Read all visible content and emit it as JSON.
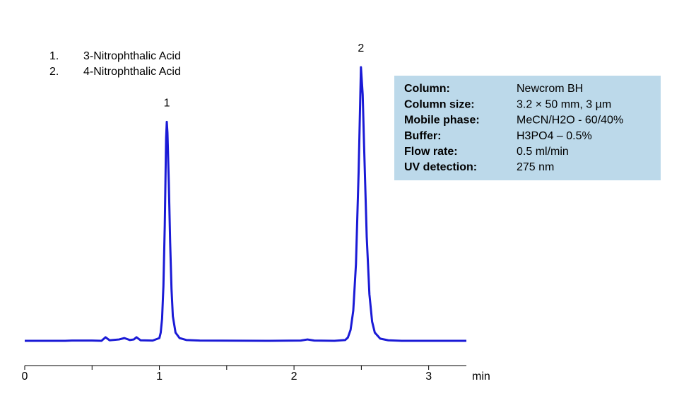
{
  "chart_data": {
    "type": "line",
    "x": [
      0,
      0.3,
      0.35,
      0.5,
      0.57,
      0.6,
      0.63,
      0.7,
      0.74,
      0.78,
      0.81,
      0.83,
      0.86,
      0.95,
      1.0,
      1.01,
      1.02,
      1.03,
      1.04,
      1.05,
      1.055,
      1.06,
      1.07,
      1.08,
      1.09,
      1.1,
      1.12,
      1.15,
      1.2,
      1.3,
      1.8,
      2.05,
      2.1,
      2.15,
      2.3,
      2.38,
      2.4,
      2.42,
      2.44,
      2.46,
      2.48,
      2.497,
      2.51,
      2.52,
      2.54,
      2.56,
      2.58,
      2.6,
      2.64,
      2.7,
      2.8,
      3.28
    ],
    "values": [
      0,
      0,
      0.1,
      0.1,
      0,
      1.3,
      0.2,
      0.5,
      1.0,
      0.3,
      0.5,
      1.3,
      0.2,
      0.1,
      1.0,
      3,
      8,
      20,
      42,
      74,
      80,
      76,
      58,
      36,
      19,
      9,
      3,
      1,
      0.3,
      0.1,
      0,
      0.1,
      0.5,
      0.1,
      0,
      0.3,
      1.2,
      4,
      11,
      28,
      62,
      100,
      90,
      72,
      38,
      17,
      7,
      3,
      0.8,
      0.2,
      0,
      0
    ],
    "color": "#1a1ad6",
    "xlim": [
      0,
      3.28
    ],
    "ylim": [
      0,
      100
    ],
    "xticks": [
      0,
      1,
      2,
      3
    ],
    "minor_xticks": [
      0.5,
      1.5,
      2.5
    ],
    "xlabel": "min",
    "peak_labels": [
      "1",
      "2"
    ],
    "compounds": [
      {
        "number": "1.",
        "name": "3-Nitrophthalic Acid"
      },
      {
        "number": "2.",
        "name": "4-Nitrophthalic Acid"
      }
    ],
    "conditions": [
      {
        "label": "Column:",
        "value": "Newcrom BH"
      },
      {
        "label": "Column size:",
        "value": "3.2 × 50 mm, 3 µm"
      },
      {
        "label": "Mobile phase:",
        "value": "MeCN/H2O - 60/40%"
      },
      {
        "label": "Buffer:",
        "value": "H3PO4 – 0.5%"
      },
      {
        "label": "Flow rate:",
        "value": "0.5 ml/min"
      },
      {
        "label": "UV detection:",
        "value": "275 nm"
      }
    ]
  }
}
